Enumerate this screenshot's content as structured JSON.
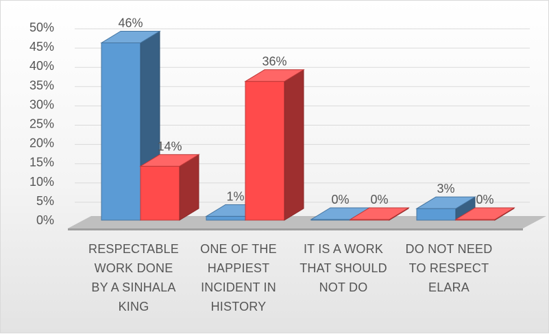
{
  "chart_data": {
    "type": "bar",
    "style": "3d-clustered-column",
    "categories": [
      [
        "RESPECTABLE",
        "WORK DONE",
        "BY A SINHALA",
        "KING"
      ],
      [
        "ONE OF THE",
        "HAPPIEST",
        "INCIDENT IN",
        "HISTORY"
      ],
      [
        "IT IS A WORK",
        "THAT SHOULD",
        "NOT DO"
      ],
      [
        "DO NOT NEED",
        "TO RESPECT",
        "ELARA"
      ]
    ],
    "series": [
      {
        "color": "#5b9bd5",
        "values": [
          0.46,
          0.01,
          0.0,
          0.03
        ],
        "labels": [
          "46%",
          "1%",
          "0%",
          "3%"
        ]
      },
      {
        "color": "#ff4b4b",
        "values": [
          0.14,
          0.36,
          0.0,
          0.0
        ],
        "labels": [
          "14%",
          "36%",
          "0%",
          "0%"
        ]
      }
    ],
    "y_ticks": [
      "0%",
      "5%",
      "10%",
      "15%",
      "20%",
      "25%",
      "30%",
      "35%",
      "40%",
      "45%",
      "50%"
    ],
    "ylim": [
      0,
      0.5
    ],
    "grid": true,
    "legend": "none"
  }
}
